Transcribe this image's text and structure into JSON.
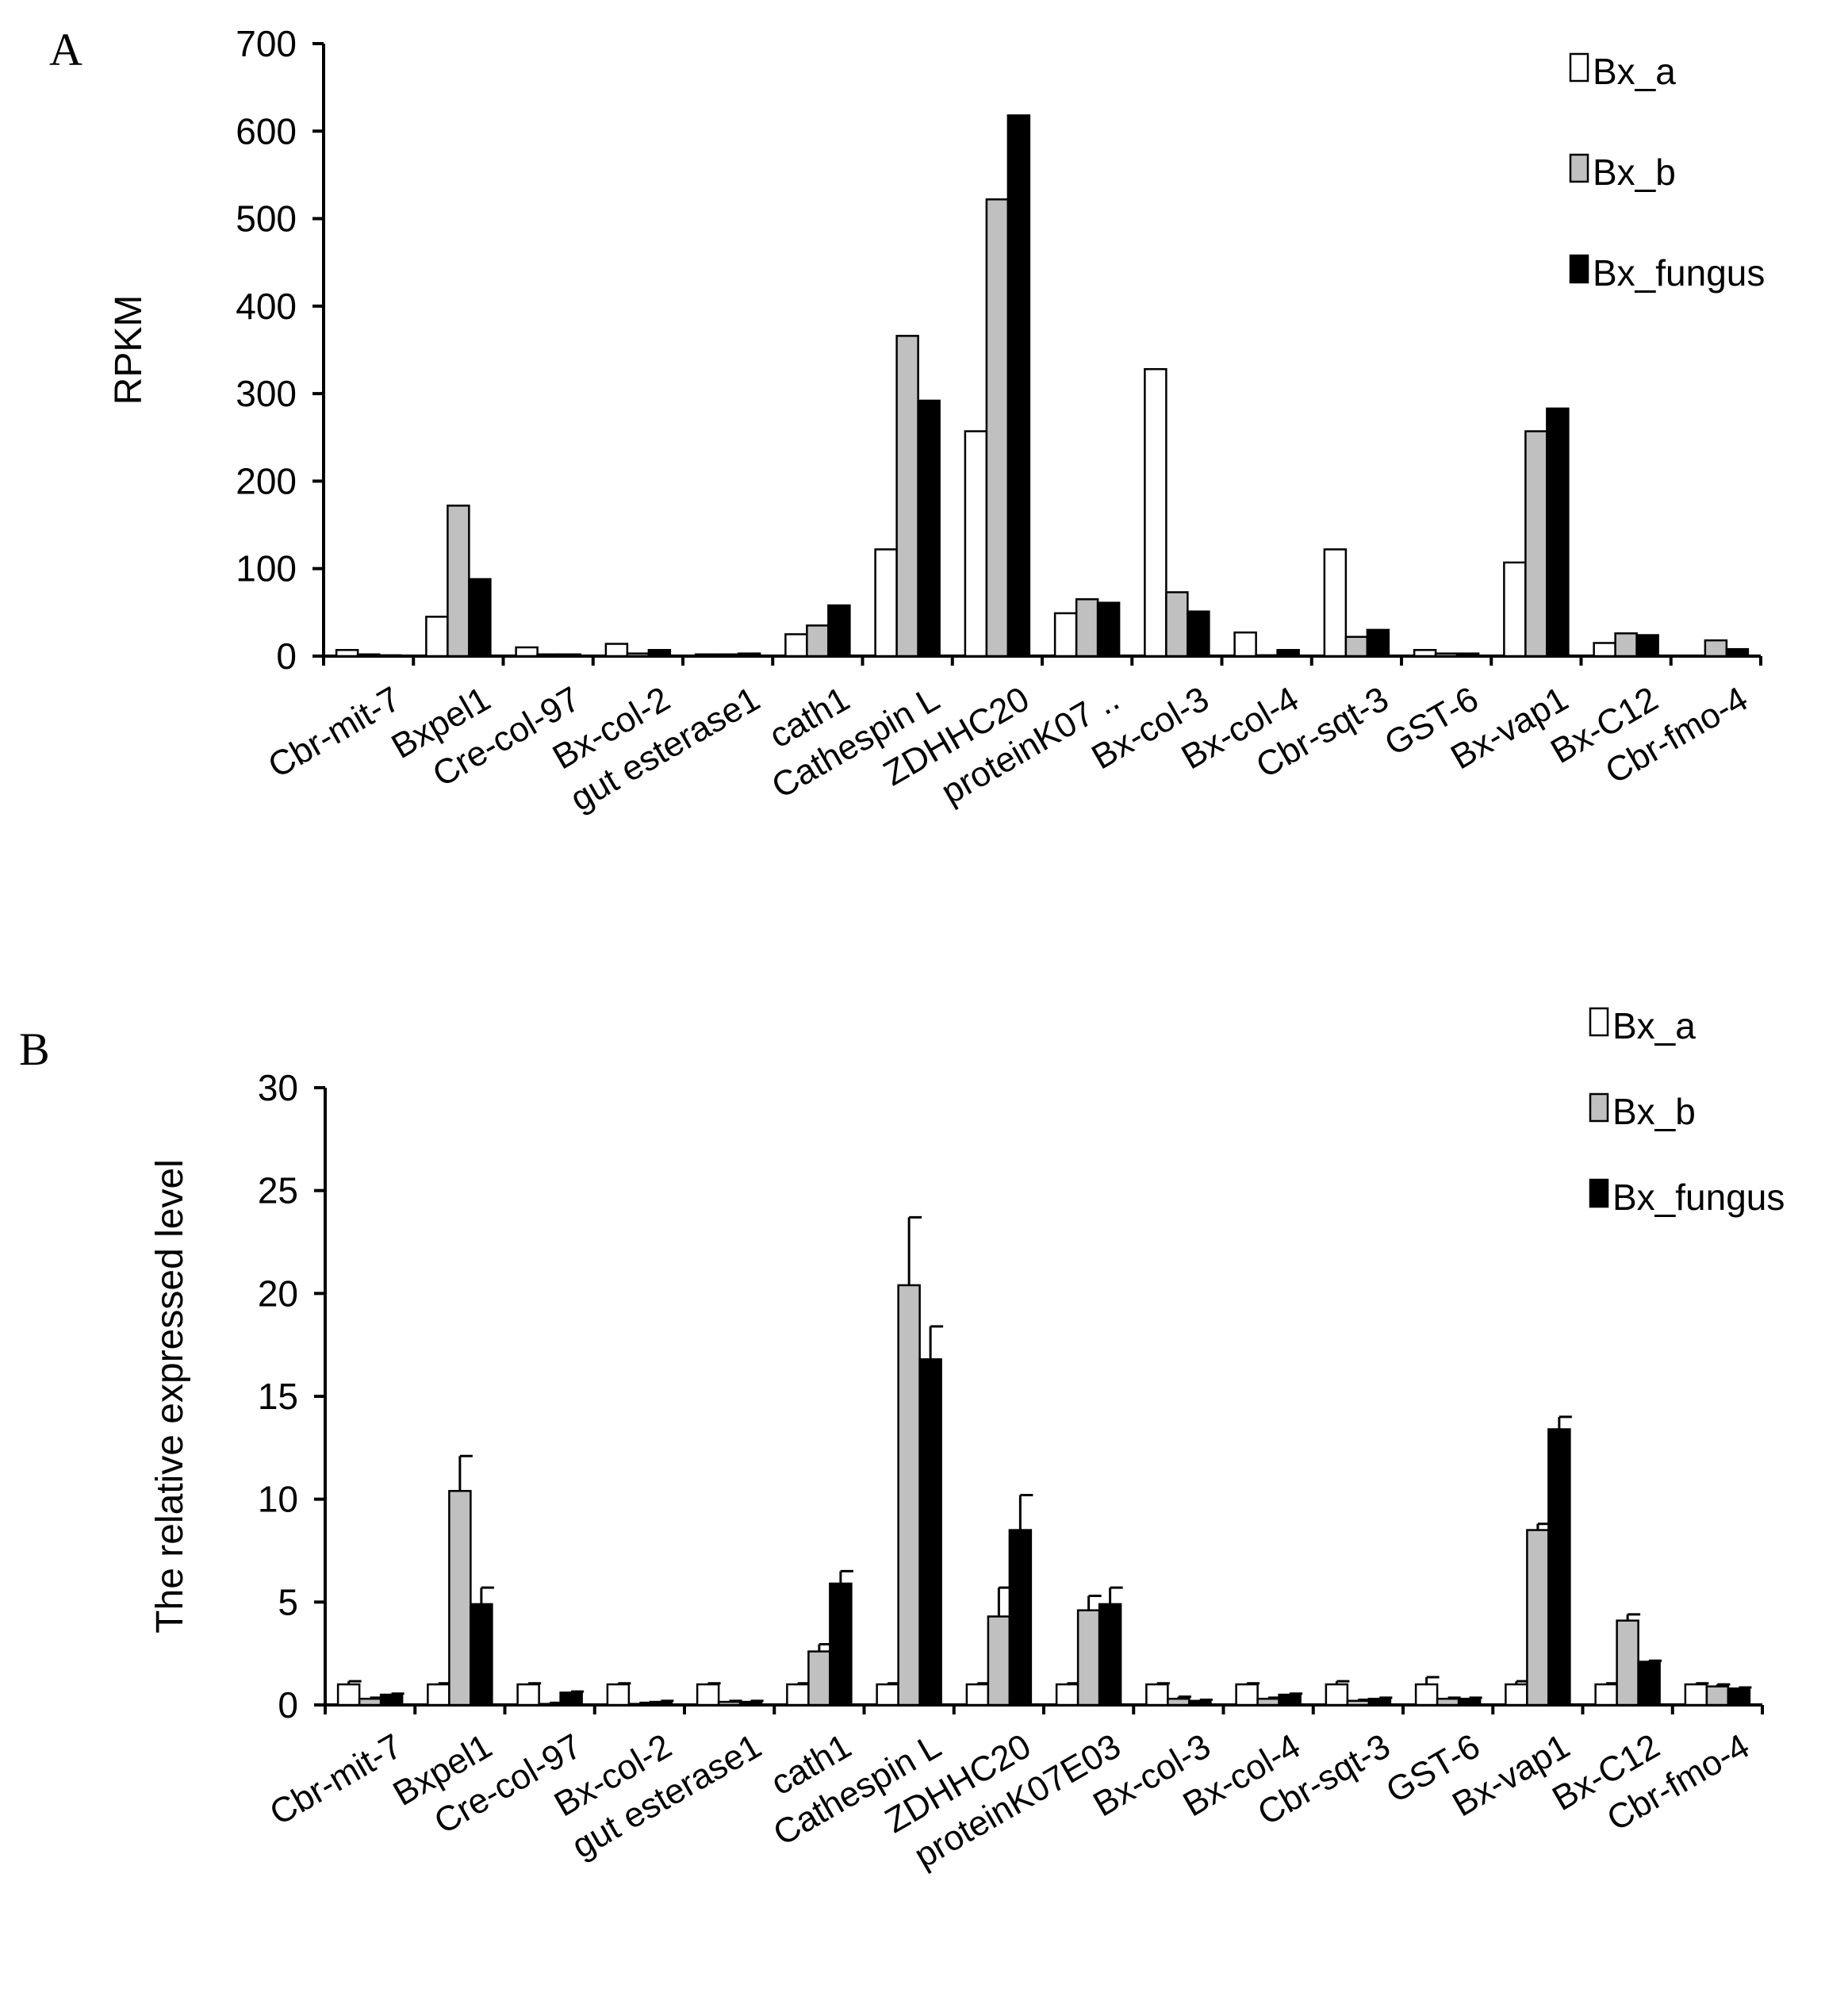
{
  "colors": {
    "Bx_a": "#ffffff",
    "Bx_b": "#c0c0c0",
    "Bx_fungus": "#000000",
    "axis": "#000000"
  },
  "chart_data": [
    {
      "panel": "A",
      "type": "bar",
      "title": "",
      "xlabel": "",
      "ylabel": "RPKM",
      "ylim": [
        0,
        700
      ],
      "yticks": [
        0,
        100,
        200,
        300,
        400,
        500,
        600,
        700
      ],
      "legend_position": "top-right",
      "categories": [
        "Cbr-mit-7",
        "Bxpel1",
        "Cre-col-97",
        "Bx-col-2",
        "gut esterase1",
        "cath1",
        "Cathespin L",
        "ZDHHC20",
        "proteinK07 ..",
        "Bx-col-3",
        "Bx-col-4",
        "Cbr-sqt-3",
        "GST-6",
        "Bx-vap1",
        "Bx-C12",
        "Cbr-fmo-4"
      ],
      "series": [
        {
          "name": "Bx_a",
          "values": [
            7,
            45,
            10,
            14,
            2,
            25,
            122,
            257,
            49,
            328,
            27,
            122,
            7,
            107,
            15,
            0
          ]
        },
        {
          "name": "Bx_b",
          "values": [
            2,
            172,
            2,
            3,
            2,
            35,
            366,
            522,
            65,
            73,
            1,
            22,
            3,
            257,
            26,
            18
          ]
        },
        {
          "name": "Bx_fungus",
          "values": [
            1,
            88,
            2,
            7,
            3,
            58,
            292,
            618,
            61,
            51,
            7,
            30,
            3,
            283,
            24,
            8
          ]
        }
      ]
    },
    {
      "panel": "B",
      "type": "bar",
      "title": "",
      "xlabel": "",
      "ylabel": "The relative expressed level",
      "ylim": [
        0,
        30
      ],
      "yticks": [
        0,
        5,
        10,
        15,
        20,
        25,
        30
      ],
      "legend_position": "top-right",
      "categories": [
        "Cbr-mit-7",
        "Bxpel1",
        "Cre-col-97",
        "Bx-col-2",
        "gut esterase1",
        "cath1",
        "Cathespin L",
        "ZDHHC20",
        "proteinK07E03",
        "Bx-col-3",
        "Bx-col-4",
        "Cbr-sqt-3",
        "GST-6",
        "Bx-vap1",
        "Bx-C12",
        "Cbr-fmo-4"
      ],
      "series": [
        {
          "name": "Bx_a",
          "values": [
            1.0,
            1.0,
            1.0,
            1.0,
            1.0,
            1.0,
            1.0,
            1.0,
            1.0,
            1.0,
            1.0,
            1.0,
            1.0,
            1.0,
            1.0,
            1.0
          ],
          "errors": [
            0.15,
            0.05,
            0.05,
            0.05,
            0.05,
            0.05,
            0.05,
            0.05,
            0.05,
            0.05,
            0.05,
            0.15,
            0.35,
            0.15,
            0.05,
            0.05
          ]
        },
        {
          "name": "Bx_b",
          "values": [
            0.3,
            10.4,
            0.05,
            0.05,
            0.15,
            2.6,
            20.4,
            4.3,
            4.6,
            0.3,
            0.3,
            0.2,
            0.3,
            8.5,
            4.1,
            0.9
          ],
          "errors": [
            0.05,
            1.7,
            0.05,
            0.05,
            0.05,
            0.35,
            3.3,
            1.4,
            0.7,
            0.1,
            0.05,
            0.05,
            0.05,
            0.3,
            0.3,
            0.1
          ]
        },
        {
          "name": "Bx_fungus",
          "values": [
            0.5,
            4.9,
            0.6,
            0.15,
            0.15,
            5.9,
            16.8,
            8.5,
            4.9,
            0.2,
            0.5,
            0.3,
            0.3,
            13.4,
            2.1,
            0.8
          ],
          "errors": [
            0.05,
            0.8,
            0.05,
            0.05,
            0.05,
            0.6,
            1.6,
            1.7,
            0.8,
            0.05,
            0.05,
            0.05,
            0.05,
            0.6,
            0.05,
            0.05
          ]
        }
      ]
    }
  ]
}
